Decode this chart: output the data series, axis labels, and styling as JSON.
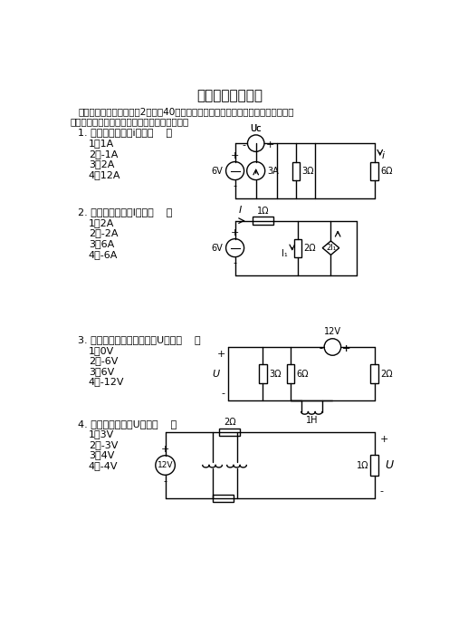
{
  "title": "电路分析基础试卷",
  "intro1": "一、单项选择题（每小题2分，全40分）从每小题的四个备选答案中，选出一个正确",
  "intro2": "答案，本将正确答案的号码填入题干的括号内。",
  "q1_text": "1. 图示电路中电流i等于（    ）",
  "q1_opts": [
    "1）1A",
    "2）-1A",
    "3）2A",
    "4）12A"
  ],
  "q2_text": "2. 图示电路中电流I等于（    ）",
  "q2_opts": [
    "1）2A",
    "2）-2A",
    "3）6A",
    "4）-6A"
  ],
  "q3_text": "3. 图示直流稳态电路中电压U等于（    ）",
  "q3_opts": [
    "1）0V",
    "2）-6V",
    "3）6V",
    "4）-12V"
  ],
  "q4_text": "4. 图示电路中电压U等于（    ）",
  "q4_opts": [
    "1）3V",
    "2）-3V",
    "3）4V",
    "4）-4V"
  ],
  "bg_color": "#ffffff",
  "text_color": "#000000"
}
